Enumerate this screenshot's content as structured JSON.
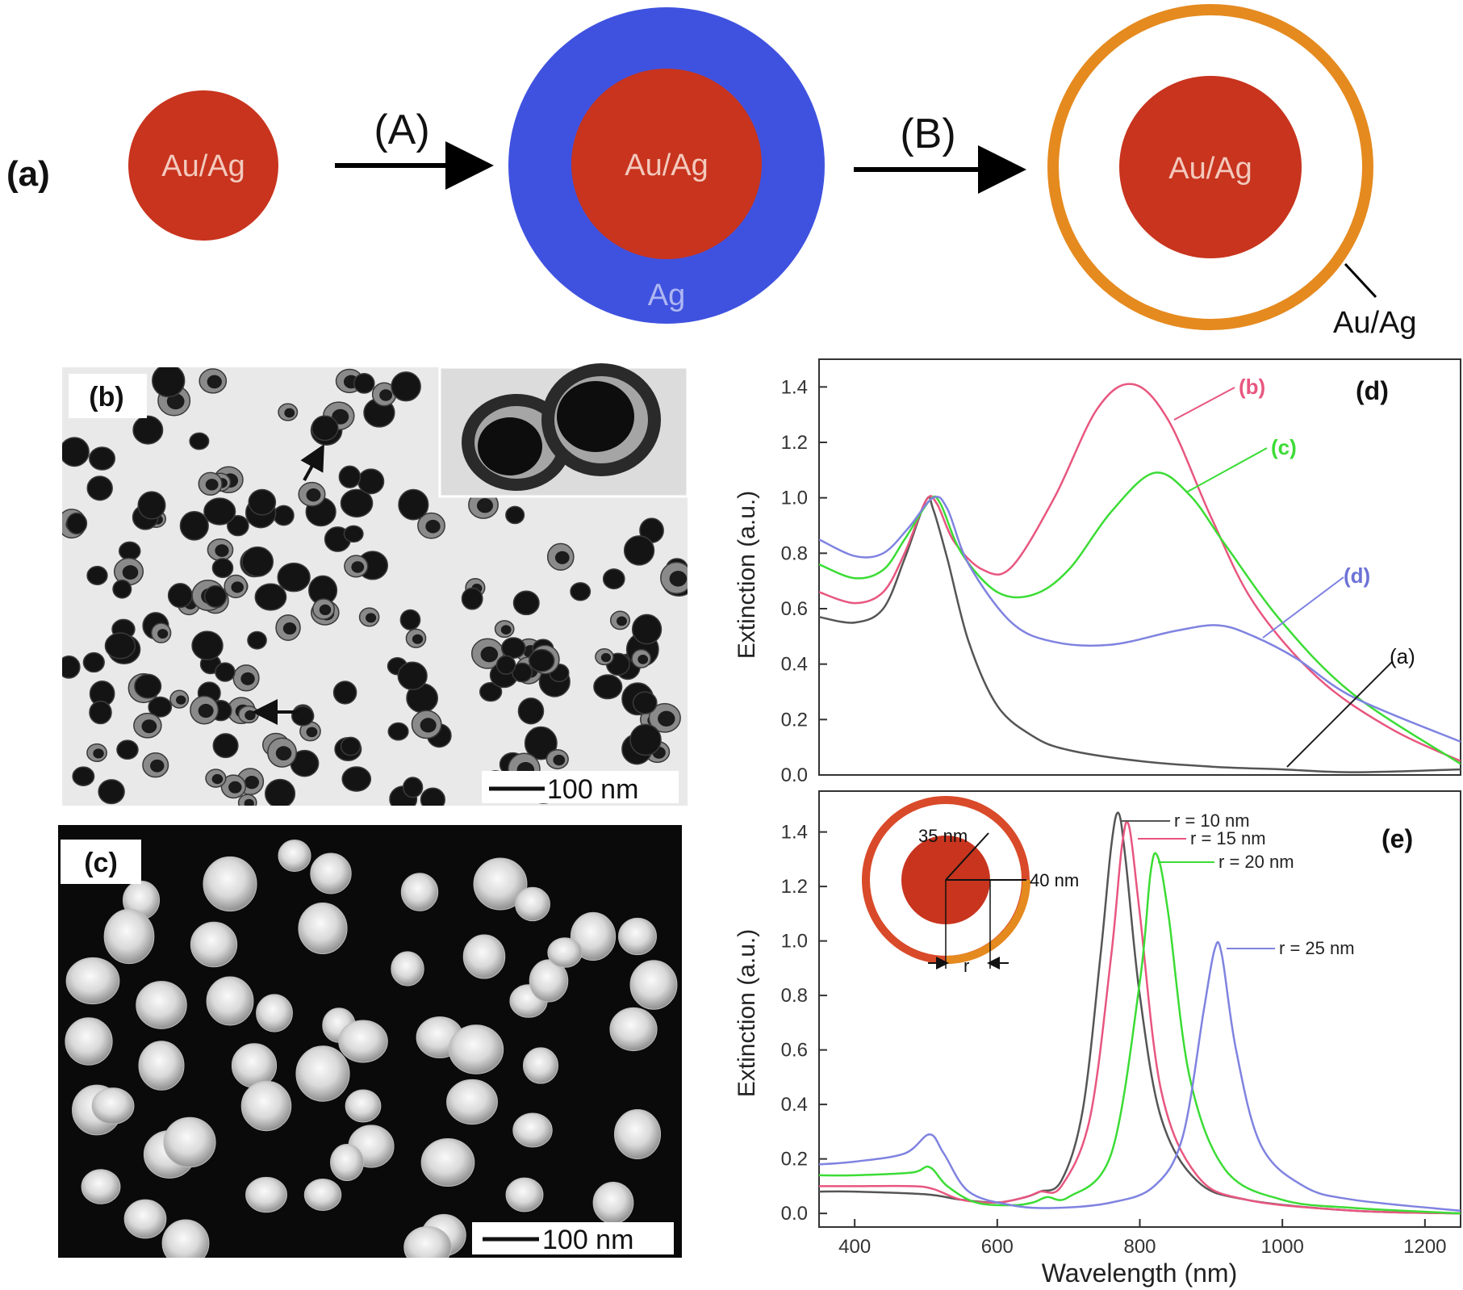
{
  "panel_a": {
    "label": "(a)",
    "step_A": "(A)",
    "step_B": "(B)",
    "core_label": "Au/Ag",
    "middle_core_label": "Au/Ag",
    "shell_label": "Ag",
    "final_core_label": "Au/Ag",
    "final_shell_label": "Au/Ag",
    "colors": {
      "core": "#c8341e",
      "ag_shell": "#3f52df",
      "hollow_shell": "#e58a1f"
    }
  },
  "panel_b": {
    "label": "(b)",
    "scale_bar": "100 nm",
    "image": "TEM micrograph of hollow nanoshell particles with inset dimer"
  },
  "panel_c": {
    "label": "(c)",
    "scale_bar": "100 nm",
    "image": "SEM micrograph of nanoparticles on black background"
  },
  "chart_data": [
    {
      "type": "line",
      "panel_label": "(d)",
      "ylabel": "Extinction (a.u.)",
      "xlim": [
        350,
        1250
      ],
      "ylim": [
        0,
        1.5
      ],
      "yticks": [
        "0.0",
        "0.2",
        "0.4",
        "0.6",
        "0.8",
        "1.0",
        "1.2",
        "1.4"
      ],
      "series": [
        {
          "name": "(a)",
          "color": "#555555",
          "x": [
            350,
            400,
            440,
            470,
            500,
            510,
            530,
            560,
            600,
            650,
            700,
            800,
            900,
            1000,
            1100,
            1250
          ],
          "y": [
            0.57,
            0.55,
            0.6,
            0.78,
            0.99,
            0.96,
            0.78,
            0.48,
            0.25,
            0.14,
            0.09,
            0.05,
            0.03,
            0.02,
            0.01,
            0.02
          ]
        },
        {
          "name": "(b)",
          "color": "#e8567f",
          "x": [
            350,
            400,
            440,
            470,
            500,
            515,
            540,
            580,
            620,
            680,
            740,
            790,
            840,
            900,
            960,
            1050,
            1150,
            1250
          ],
          "y": [
            0.66,
            0.62,
            0.66,
            0.8,
            0.99,
            0.98,
            0.84,
            0.74,
            0.75,
            1.0,
            1.32,
            1.41,
            1.28,
            0.93,
            0.62,
            0.35,
            0.17,
            0.05
          ]
        },
        {
          "name": "(c)",
          "color": "#3bdc35",
          "x": [
            350,
            400,
            440,
            470,
            505,
            520,
            550,
            600,
            650,
            700,
            760,
            820,
            870,
            920,
            1000,
            1100,
            1250
          ],
          "y": [
            0.76,
            0.71,
            0.74,
            0.85,
            0.99,
            0.98,
            0.8,
            0.66,
            0.65,
            0.74,
            0.95,
            1.09,
            1.01,
            0.83,
            0.55,
            0.29,
            0.04
          ]
        },
        {
          "name": "(d)",
          "color": "#7f83e0",
          "x": [
            350,
            400,
            440,
            475,
            510,
            530,
            560,
            620,
            680,
            760,
            850,
            910,
            960,
            1020,
            1100,
            1250
          ],
          "y": [
            0.85,
            0.79,
            0.8,
            0.89,
            1.0,
            0.96,
            0.76,
            0.55,
            0.48,
            0.47,
            0.52,
            0.54,
            0.5,
            0.42,
            0.28,
            0.12
          ]
        }
      ],
      "annotations": [
        "(a)",
        "(b)",
        "(c)",
        "(d)"
      ]
    },
    {
      "type": "line",
      "panel_label": "(e)",
      "xlabel": "Wavelength (nm)",
      "ylabel": "Extinction (a.u.)",
      "xlim": [
        350,
        1250
      ],
      "ylim": [
        -0.05,
        1.55
      ],
      "xticks": [
        "400",
        "600",
        "800",
        "1000",
        "1200"
      ],
      "yticks": [
        "0.0",
        "0.2",
        "0.4",
        "0.6",
        "0.8",
        "1.0",
        "1.2",
        "1.4"
      ],
      "series": [
        {
          "name": "r = 10 nm",
          "color": "#555555",
          "x": [
            350,
            400,
            500,
            550,
            600,
            640,
            660,
            690,
            720,
            745,
            760,
            770,
            780,
            800,
            830,
            880,
            950,
            1100,
            1250
          ],
          "y": [
            0.08,
            0.08,
            0.07,
            0.05,
            0.04,
            0.06,
            0.08,
            0.12,
            0.38,
            0.95,
            1.35,
            1.47,
            1.3,
            0.8,
            0.35,
            0.12,
            0.05,
            0.01,
            0.0
          ]
        },
        {
          "name": "r = 15 nm",
          "color": "#e8567f",
          "x": [
            350,
            400,
            480,
            510,
            550,
            600,
            640,
            660,
            690,
            730,
            760,
            775,
            785,
            800,
            830,
            880,
            950,
            1100,
            1250
          ],
          "y": [
            0.1,
            0.1,
            0.1,
            0.09,
            0.05,
            0.04,
            0.06,
            0.08,
            0.1,
            0.35,
            0.95,
            1.35,
            1.42,
            1.1,
            0.45,
            0.14,
            0.05,
            0.01,
            0.0
          ]
        },
        {
          "name": "r = 20 nm",
          "color": "#3bdc35",
          "x": [
            350,
            400,
            480,
            505,
            530,
            570,
            620,
            650,
            670,
            700,
            760,
            800,
            815,
            825,
            840,
            870,
            920,
            1000,
            1100,
            1250
          ],
          "y": [
            0.14,
            0.14,
            0.15,
            0.17,
            0.1,
            0.04,
            0.03,
            0.04,
            0.06,
            0.06,
            0.22,
            0.85,
            1.25,
            1.31,
            1.1,
            0.5,
            0.16,
            0.05,
            0.02,
            0.0
          ]
        },
        {
          "name": "r = 25 nm",
          "color": "#7f83e0",
          "x": [
            350,
            400,
            470,
            505,
            525,
            560,
            620,
            680,
            760,
            820,
            860,
            890,
            905,
            915,
            935,
            970,
            1030,
            1100,
            1250
          ],
          "y": [
            0.18,
            0.19,
            0.22,
            0.29,
            0.22,
            0.08,
            0.03,
            0.02,
            0.04,
            0.1,
            0.28,
            0.75,
            0.97,
            0.95,
            0.6,
            0.25,
            0.1,
            0.05,
            0.01
          ]
        }
      ],
      "inset": {
        "label_inner": "35 nm",
        "label_outer": "40 nm",
        "label_r": "r"
      },
      "annotations": [
        "r = 10 nm",
        "r = 15 nm",
        "r = 20 nm",
        "r = 25 nm"
      ]
    }
  ]
}
